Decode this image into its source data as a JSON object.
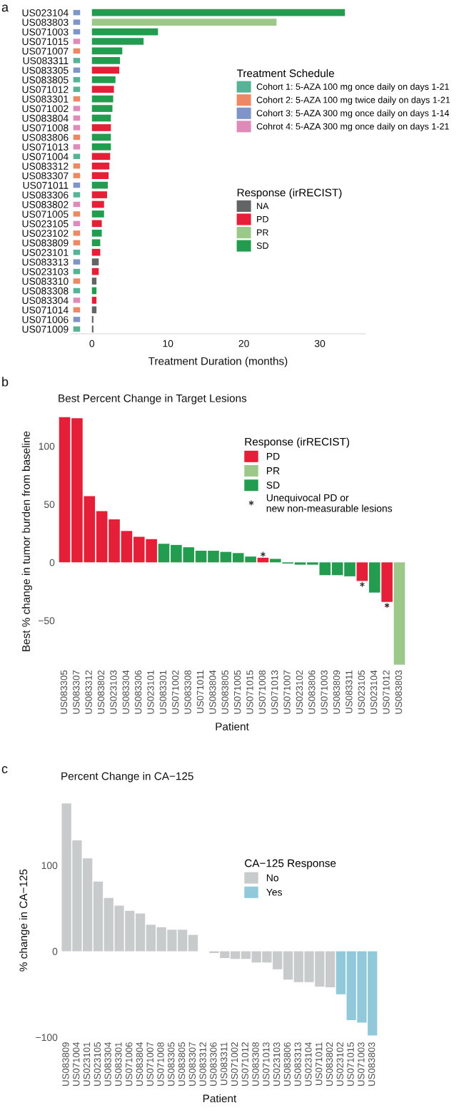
{
  "chart_data": [
    {
      "type": "bar",
      "orientation": "horizontal",
      "xlabel": "Treatment Duration (months)",
      "legend_title": [
        "Treatment Schedule",
        "Response (irRECIST)"
      ],
      "legend": "right",
      "grid": false,
      "annotations": [
        "a"
      ],
      "categories": [
        "US023104",
        "US083803",
        "US071003",
        "US071015",
        "US071007",
        "US083311",
        "US083305",
        "US083805",
        "US071012",
        "US083301",
        "US071002",
        "US083804",
        "US071008",
        "US083806",
        "US071013",
        "US071004",
        "US083312",
        "US083307",
        "US071011",
        "US083306",
        "US083802",
        "US071005",
        "US023105",
        "US023102",
        "US083809",
        "US023101",
        "US083313",
        "US023103",
        "US083310",
        "US083308",
        "US083304",
        "US071014",
        "US071006",
        "US071009"
      ],
      "xlim": [
        -2.8,
        36
      ],
      "xticks": [
        0,
        10,
        20,
        30
      ],
      "series": [
        {
          "type": "scatter",
          "marker": "square",
          "name": "Cohort 1: 5-AZA 100 mg once daily on days 1-21",
          "color": "#58b396",
          "values": [
            null,
            null,
            null,
            null,
            null,
            -2,
            null,
            -2,
            -2,
            null,
            null,
            null,
            null,
            null,
            null,
            -2,
            null,
            null,
            null,
            -2,
            null,
            null,
            null,
            null,
            null,
            -2,
            null,
            -2,
            null,
            -2,
            null,
            null,
            null,
            -2
          ]
        },
        {
          "type": "scatter",
          "marker": "square",
          "name": "Cohort 2: 5-AZA 100 mg twice daily on days 1-21",
          "color": "#ec8964",
          "values": [
            null,
            null,
            null,
            null,
            -2,
            null,
            null,
            null,
            null,
            -2,
            null,
            null,
            null,
            -2,
            null,
            null,
            -2,
            -2,
            null,
            null,
            null,
            -2,
            null,
            -2,
            -2,
            null,
            null,
            null,
            -2,
            null,
            null,
            -2,
            null,
            null
          ]
        },
        {
          "type": "scatter",
          "marker": "square",
          "name": "Cohort 3: 5-AZA 300 mg once daily on days 1-14",
          "color": "#7f95c7",
          "values": [
            -2,
            -2,
            -2,
            null,
            null,
            null,
            -2,
            null,
            null,
            null,
            null,
            null,
            null,
            null,
            null,
            null,
            null,
            null,
            -2,
            null,
            null,
            null,
            null,
            null,
            null,
            null,
            -2,
            null,
            null,
            null,
            null,
            null,
            -2,
            null
          ]
        },
        {
          "type": "scatter",
          "marker": "square",
          "name": "Cohrot 4: 5-AZA 300 mg once daily on days 1-21",
          "color": "#de8bb9",
          "values": [
            null,
            null,
            null,
            -2,
            null,
            null,
            null,
            null,
            null,
            null,
            -2,
            -2,
            -2,
            null,
            -2,
            null,
            null,
            null,
            null,
            null,
            -2,
            null,
            -2,
            null,
            null,
            null,
            null,
            null,
            null,
            null,
            -2,
            null,
            null,
            null
          ]
        },
        {
          "name": "NA",
          "color": "#626466",
          "values": [
            null,
            null,
            null,
            null,
            null,
            null,
            null,
            null,
            null,
            null,
            null,
            null,
            null,
            null,
            null,
            null,
            null,
            null,
            null,
            null,
            null,
            null,
            null,
            null,
            null,
            null,
            0.9,
            null,
            0.6,
            null,
            null,
            0.6,
            0.2,
            0.2
          ]
        },
        {
          "name": "PD",
          "color": "#e41f37",
          "values": [
            null,
            null,
            null,
            null,
            null,
            null,
            3.6,
            null,
            2.9,
            null,
            null,
            null,
            2.5,
            null,
            null,
            2.4,
            2.3,
            2.2,
            null,
            2.0,
            1.6,
            null,
            1.3,
            null,
            null,
            1.1,
            null,
            0.9,
            null,
            null,
            0.6,
            null,
            null,
            null
          ]
        },
        {
          "name": "PR",
          "color": "#9cc98a",
          "values": [
            null,
            24.3,
            null,
            null,
            null,
            null,
            null,
            null,
            null,
            null,
            null,
            null,
            null,
            null,
            null,
            null,
            null,
            null,
            null,
            null,
            null,
            null,
            null,
            null,
            null,
            null,
            null,
            null,
            null,
            null,
            null,
            null,
            null,
            null
          ]
        },
        {
          "name": "SD",
          "color": "#239c4f",
          "values": [
            33.3,
            null,
            8.7,
            6.8,
            4.0,
            3.7,
            null,
            3.1,
            null,
            2.8,
            2.7,
            2.5,
            null,
            2.5,
            2.5,
            null,
            null,
            null,
            2.1,
            null,
            null,
            1.6,
            null,
            1.3,
            1.1,
            null,
            null,
            null,
            null,
            0.6,
            null,
            null,
            null,
            null
          ]
        }
      ]
    },
    {
      "type": "bar",
      "title": "Best Percent Change in Target Lesions",
      "xlabel": "Patient",
      "ylabel": "Best % change in tumor burden from baseline",
      "legend_title": "Response (irRECIST)",
      "legend": "right",
      "grid": false,
      "annotations": [
        "b"
      ],
      "categories": [
        "US083305",
        "US083307",
        "US083312",
        "US083802",
        "US023103",
        "US083304",
        "US083306",
        "US023101",
        "US083301",
        "US071002",
        "US083308",
        "US071011",
        "US083804",
        "US083805",
        "US071005",
        "US071015",
        "US071008",
        "US071013",
        "US071007",
        "US023102",
        "US083806",
        "US071003",
        "US083809",
        "US083311",
        "US023105",
        "US023104",
        "US071012",
        "US083803"
      ],
      "ylim": [
        -90,
        126
      ],
      "yticks": [
        {
          "value": -50,
          "label": "−50"
        },
        0,
        50,
        100
      ],
      "series": [
        {
          "name": "PD",
          "color": "#e41f37",
          "values": [
            125,
            124,
            57,
            44,
            37,
            27,
            22,
            20,
            null,
            null,
            null,
            null,
            null,
            null,
            null,
            null,
            4,
            null,
            null,
            null,
            null,
            null,
            null,
            null,
            -16,
            null,
            -34,
            null
          ]
        },
        {
          "name": "PR",
          "color": "#9cc98a",
          "values": [
            null,
            null,
            null,
            null,
            null,
            null,
            null,
            null,
            null,
            null,
            null,
            null,
            null,
            null,
            null,
            null,
            null,
            null,
            null,
            null,
            null,
            null,
            null,
            null,
            null,
            null,
            null,
            -88
          ]
        },
        {
          "name": "SD",
          "color": "#239c4f",
          "values": [
            null,
            null,
            null,
            null,
            null,
            null,
            null,
            null,
            16,
            15,
            13,
            10,
            10,
            9,
            8,
            5,
            null,
            3,
            -1,
            -2,
            -2,
            -11,
            -11,
            -12,
            null,
            -26,
            null,
            null
          ]
        },
        {
          "type": "scatter",
          "marker": "cross",
          "name": "Unequivocal PD or\nnew non-measurable lesions",
          "color": "#333333",
          "values": [
            null,
            null,
            null,
            null,
            null,
            null,
            null,
            null,
            null,
            null,
            null,
            null,
            null,
            null,
            null,
            null,
            7,
            null,
            null,
            null,
            null,
            null,
            null,
            null,
            -19,
            null,
            -37,
            null
          ]
        }
      ]
    },
    {
      "type": "bar",
      "title": "Percent Change in CA−125",
      "xlabel": "Patient",
      "ylabel": "% change in CA−125",
      "legend_title": "CA−125 Response",
      "legend": "right",
      "grid": false,
      "annotations": [
        "c"
      ],
      "categories": [
        "US083809",
        "US071004",
        "US023101",
        "US023105",
        "US083304",
        "US083301",
        "US071006",
        "US083804",
        "US071007",
        "US071008",
        "US083305",
        "US083805",
        "US083307",
        "US083312",
        "US083306",
        "US083311",
        "US071002",
        "US071012",
        "US083308",
        "US071013",
        "US023103",
        "US083806",
        "US083313",
        "US023104",
        "US071011",
        "US083802",
        "US023102",
        "US071015",
        "US071003",
        "US083803"
      ],
      "ylim": [
        -102,
        174
      ],
      "yticks": [
        {
          "value": -100,
          "label": "−100"
        },
        0,
        100
      ],
      "series": [
        {
          "name": "No",
          "color": "#c8cbcc",
          "values": [
            172,
            129,
            108,
            81,
            62,
            53,
            47,
            44,
            31,
            28,
            25,
            25,
            19,
            0,
            -2,
            -8,
            -9,
            -9,
            -13,
            -13,
            -21,
            -33,
            -36,
            -36,
            -41,
            -42,
            null,
            null,
            null,
            null
          ]
        },
        {
          "name": "Yes",
          "color": "#92c9da",
          "values": [
            null,
            null,
            null,
            null,
            null,
            null,
            null,
            null,
            null,
            null,
            null,
            null,
            null,
            null,
            null,
            null,
            null,
            null,
            null,
            null,
            null,
            null,
            null,
            null,
            null,
            null,
            -50,
            -80,
            -83,
            -98
          ]
        }
      ]
    }
  ]
}
